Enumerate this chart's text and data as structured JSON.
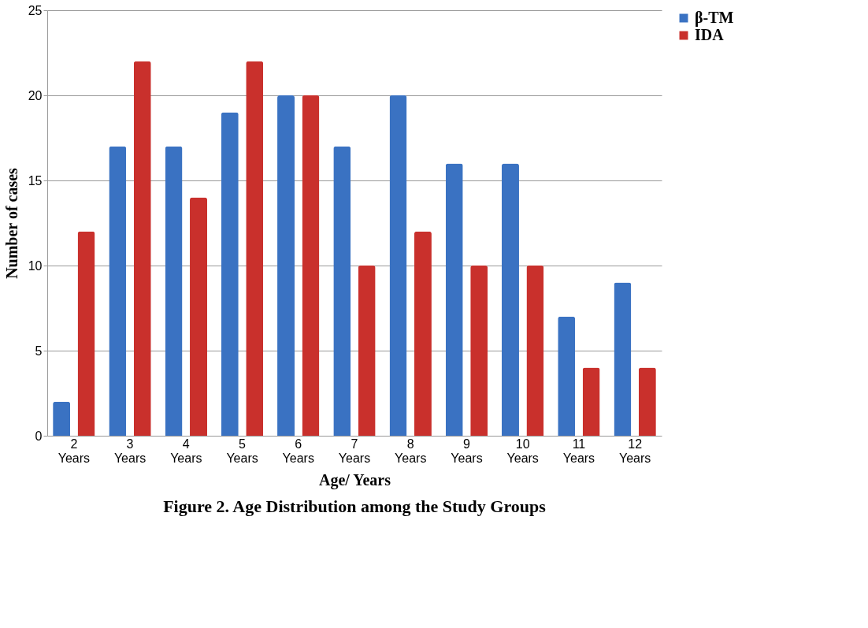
{
  "chart_data": {
    "type": "bar",
    "title": "Figure 2. Age Distribution among the Study Groups",
    "xlabel": "Age/ Years",
    "ylabel": "Number of cases",
    "categories": [
      "2 Years",
      "3 Years",
      "4 Years",
      "5 Years",
      "6 Years",
      "7 Years",
      "8 Years",
      "9 Years",
      "10 Years",
      "11 Years",
      "12 Years"
    ],
    "series": [
      {
        "name": "β-TM",
        "color": "#3a72c2",
        "values": [
          2,
          17,
          17,
          19,
          20,
          17,
          20,
          16,
          16,
          7,
          9
        ]
      },
      {
        "name": "IDA",
        "color": "#c9302c",
        "values": [
          12,
          22,
          14,
          22,
          20,
          10,
          12,
          10,
          10,
          4,
          4
        ]
      }
    ],
    "ylim": [
      0,
      25
    ],
    "yticks": [
      0,
      5,
      10,
      15,
      20,
      25
    ],
    "grid": "y",
    "legend": "right"
  }
}
